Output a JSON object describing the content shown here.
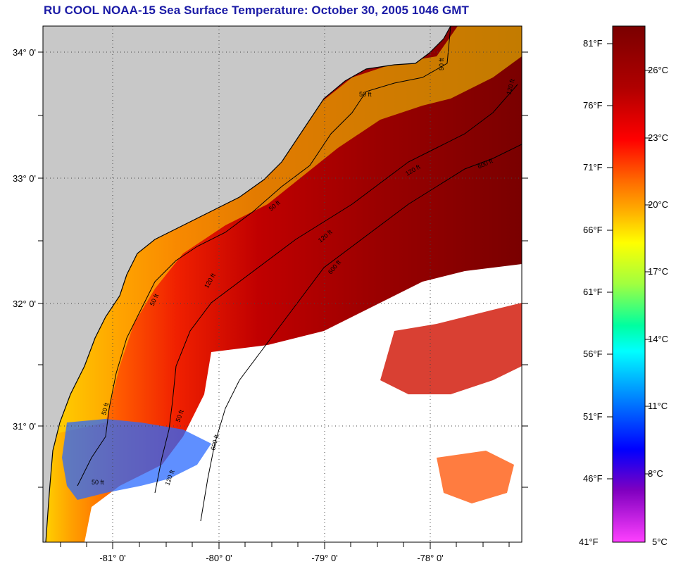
{
  "title": "RU COOL  NOAA-15  Sea Surface Temperature:  October 30, 2005 1046 GMT",
  "map": {
    "lon_ticks": [
      "-81° 0'",
      "-80° 0'",
      "-79° 0'",
      "-78° 0'"
    ],
    "lat_ticks": [
      "34° 0'",
      "33° 0'",
      "32° 0'",
      "31° 0'"
    ],
    "contour_labels": [
      "50 ft",
      "50 ft",
      "50 ft",
      "50 ft",
      "50 ft",
      "50 ft",
      "50 ft",
      "120 ft",
      "120 ft",
      "120 ft",
      "120 ft",
      "120 ft",
      "600 ft",
      "600 ft",
      "600 ft"
    ],
    "colors": {
      "land": "#c8c8c8",
      "cloud": "#ffffff",
      "coast": "#000000"
    }
  },
  "colorbar": {
    "fahrenheit_labels": [
      "81°F",
      "76°F",
      "71°F",
      "66°F",
      "61°F",
      "56°F",
      "51°F",
      "46°F",
      "41°F"
    ],
    "celsius_labels": [
      "26°C",
      "23°C",
      "20°C",
      "17°C",
      "14°C",
      "11°C",
      "8°C",
      "5°C"
    ],
    "stops": [
      "#7a0000",
      "#b00000",
      "#ff0000",
      "#ff6a00",
      "#ffb000",
      "#ffff00",
      "#a0ff40",
      "#00ffa0",
      "#00ffff",
      "#00a0ff",
      "#0000ff",
      "#8000c0",
      "#ff40ff"
    ]
  }
}
